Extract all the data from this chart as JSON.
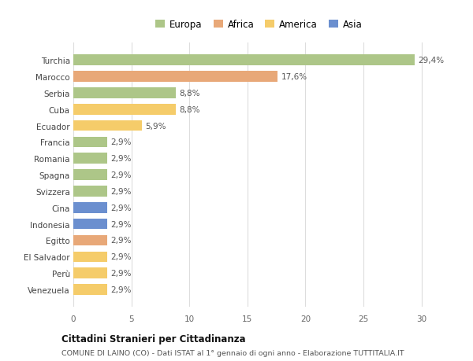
{
  "categories": [
    "Venezuela",
    "Perù",
    "El Salvador",
    "Egitto",
    "Indonesia",
    "Cina",
    "Svizzera",
    "Spagna",
    "Romania",
    "Francia",
    "Ecuador",
    "Cuba",
    "Serbia",
    "Marocco",
    "Turchia"
  ],
  "values": [
    2.9,
    2.9,
    2.9,
    2.9,
    2.9,
    2.9,
    2.9,
    2.9,
    2.9,
    2.9,
    5.9,
    8.8,
    8.8,
    17.6,
    29.4
  ],
  "colors": [
    "#f5cc6a",
    "#f5cc6a",
    "#f5cc6a",
    "#e8a878",
    "#6b8fcf",
    "#6b8fcf",
    "#adc688",
    "#adc688",
    "#adc688",
    "#adc688",
    "#f5cc6a",
    "#f5cc6a",
    "#adc688",
    "#e8a878",
    "#adc688"
  ],
  "labels": [
    "2,9%",
    "2,9%",
    "2,9%",
    "2,9%",
    "2,9%",
    "2,9%",
    "2,9%",
    "2,9%",
    "2,9%",
    "2,9%",
    "5,9%",
    "8,8%",
    "8,8%",
    "17,6%",
    "29,4%"
  ],
  "legend_labels": [
    "Europa",
    "Africa",
    "America",
    "Asia"
  ],
  "legend_colors": [
    "#adc688",
    "#e8a878",
    "#f5cc6a",
    "#6b8fcf"
  ],
  "title": "Cittadini Stranieri per Cittadinanza",
  "subtitle": "COMUNE DI LAINO (CO) - Dati ISTAT al 1° gennaio di ogni anno - Elaborazione TUTTITALIA.IT",
  "xlim": [
    0,
    32
  ],
  "xticks": [
    0,
    5,
    10,
    15,
    20,
    25,
    30
  ],
  "bg_color": "#ffffff",
  "grid_color": "#dddddd"
}
